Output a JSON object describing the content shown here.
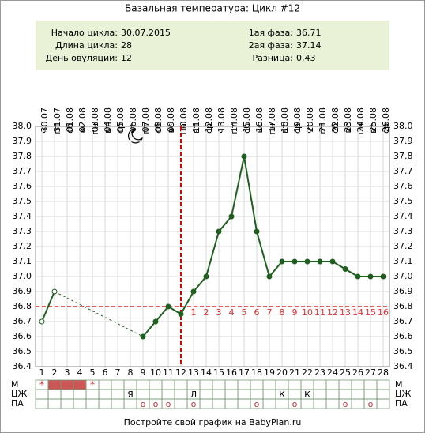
{
  "chart_data": {
    "type": "line",
    "title": "Базальная температура: Цикл #12",
    "info_left": [
      {
        "label": "Начало цикла:",
        "value": "30.07.2015"
      },
      {
        "label": "Длина цикла:",
        "value": "28"
      },
      {
        "label": "День овуляции:",
        "value": "12"
      }
    ],
    "info_right": [
      {
        "label": "1ая фаза:",
        "value": "36.71"
      },
      {
        "label": "2ая фаза:",
        "value": "37.14"
      },
      {
        "label": "Разница:",
        "value": "0,43"
      }
    ],
    "dates": [
      "30.07",
      "31.07",
      "01.08",
      "02.08",
      "03.08",
      "04.08",
      "05.08",
      "06.08",
      "07.08",
      "08.08",
      "09.08",
      "10.08",
      "11.08",
      "12.08",
      "13.08",
      "14.08",
      "15.08",
      "16.08",
      "17.08",
      "18.08",
      "19.08",
      "20.08",
      "21.08",
      "22.08",
      "23.08",
      "24.08",
      "25.08",
      "26.08"
    ],
    "weekdays": [
      "чт",
      "пт",
      "сб",
      "вс",
      "пн",
      "вт",
      "ср",
      "чт",
      "пт",
      "сб",
      "вс",
      "пн",
      "вт",
      "ср",
      "чт",
      "пт",
      "сб",
      "вс",
      "пн",
      "вт",
      "ср",
      "чт",
      "пт",
      "сб",
      "вс",
      "пн",
      "вт",
      "ср"
    ],
    "x": [
      1,
      2,
      3,
      4,
      5,
      6,
      7,
      8,
      9,
      10,
      11,
      12,
      13,
      14,
      15,
      16,
      17,
      18,
      19,
      20,
      21,
      22,
      23,
      24,
      25,
      26,
      27,
      28
    ],
    "xlim": [
      0.5,
      28.5
    ],
    "xticks": [
      1,
      2,
      3,
      4,
      5,
      6,
      7,
      8,
      9,
      10,
      11,
      12,
      13,
      14,
      15,
      16,
      17,
      18,
      19,
      20,
      21,
      22,
      23,
      24,
      25,
      26,
      27,
      28
    ],
    "values": [
      36.7,
      36.9,
      null,
      null,
      null,
      null,
      null,
      null,
      36.6,
      36.7,
      36.8,
      36.75,
      36.9,
      37.0,
      37.3,
      37.4,
      37.8,
      37.3,
      37.0,
      37.1,
      37.1,
      37.1,
      37.1,
      37.1,
      37.05,
      37.0,
      37.0,
      37.0
    ],
    "color": "#1f5f1f",
    "hollow_days": [
      1,
      2
    ],
    "ylim": [
      36.4,
      38.0
    ],
    "yticks": [
      {
        "value": 36.4,
        "label": "36.4"
      },
      36.5,
      36.6,
      36.7,
      36.8,
      36.9,
      {
        "value": 37.0,
        "label": "37.0"
      },
      37.1,
      37.2,
      37.3,
      37.4,
      37.5,
      37.6,
      37.7,
      37.8,
      37.9,
      {
        "value": 38.0,
        "label": "38.0"
      }
    ],
    "grid": true,
    "coverline": 36.8,
    "ovulation_day": 12,
    "luteal_days": [
      1,
      2,
      3,
      4,
      5,
      6,
      7,
      8,
      9,
      10,
      11,
      12,
      13,
      14,
      15,
      16
    ],
    "rows": [
      {
        "label": "М",
        "cells": [
          "*",
          null,
          null,
          null,
          "*",
          null,
          null,
          null,
          null,
          null,
          null,
          null,
          null,
          null,
          null,
          null,
          null,
          null,
          null,
          null,
          null,
          null,
          null,
          null,
          null,
          null,
          null,
          null
        ]
      },
      {
        "label": "ЦЖ",
        "cells": [
          null,
          null,
          null,
          null,
          null,
          null,
          null,
          "Я",
          null,
          null,
          null,
          null,
          "Л",
          null,
          null,
          null,
          null,
          null,
          null,
          "К",
          null,
          "К",
          null,
          null,
          null,
          null,
          null,
          null
        ]
      },
      {
        "label": "ПА",
        "cells": [
          null,
          null,
          null,
          null,
          null,
          null,
          null,
          null,
          "o",
          "o",
          "o",
          null,
          "o",
          null,
          null,
          null,
          null,
          "o",
          null,
          null,
          "o",
          null,
          null,
          null,
          "o",
          null,
          "o",
          null
        ]
      }
    ],
    "menses_flow_days": [
      2,
      3,
      4
    ],
    "footer": "Постройте свой график на BabyPlan.ru"
  }
}
